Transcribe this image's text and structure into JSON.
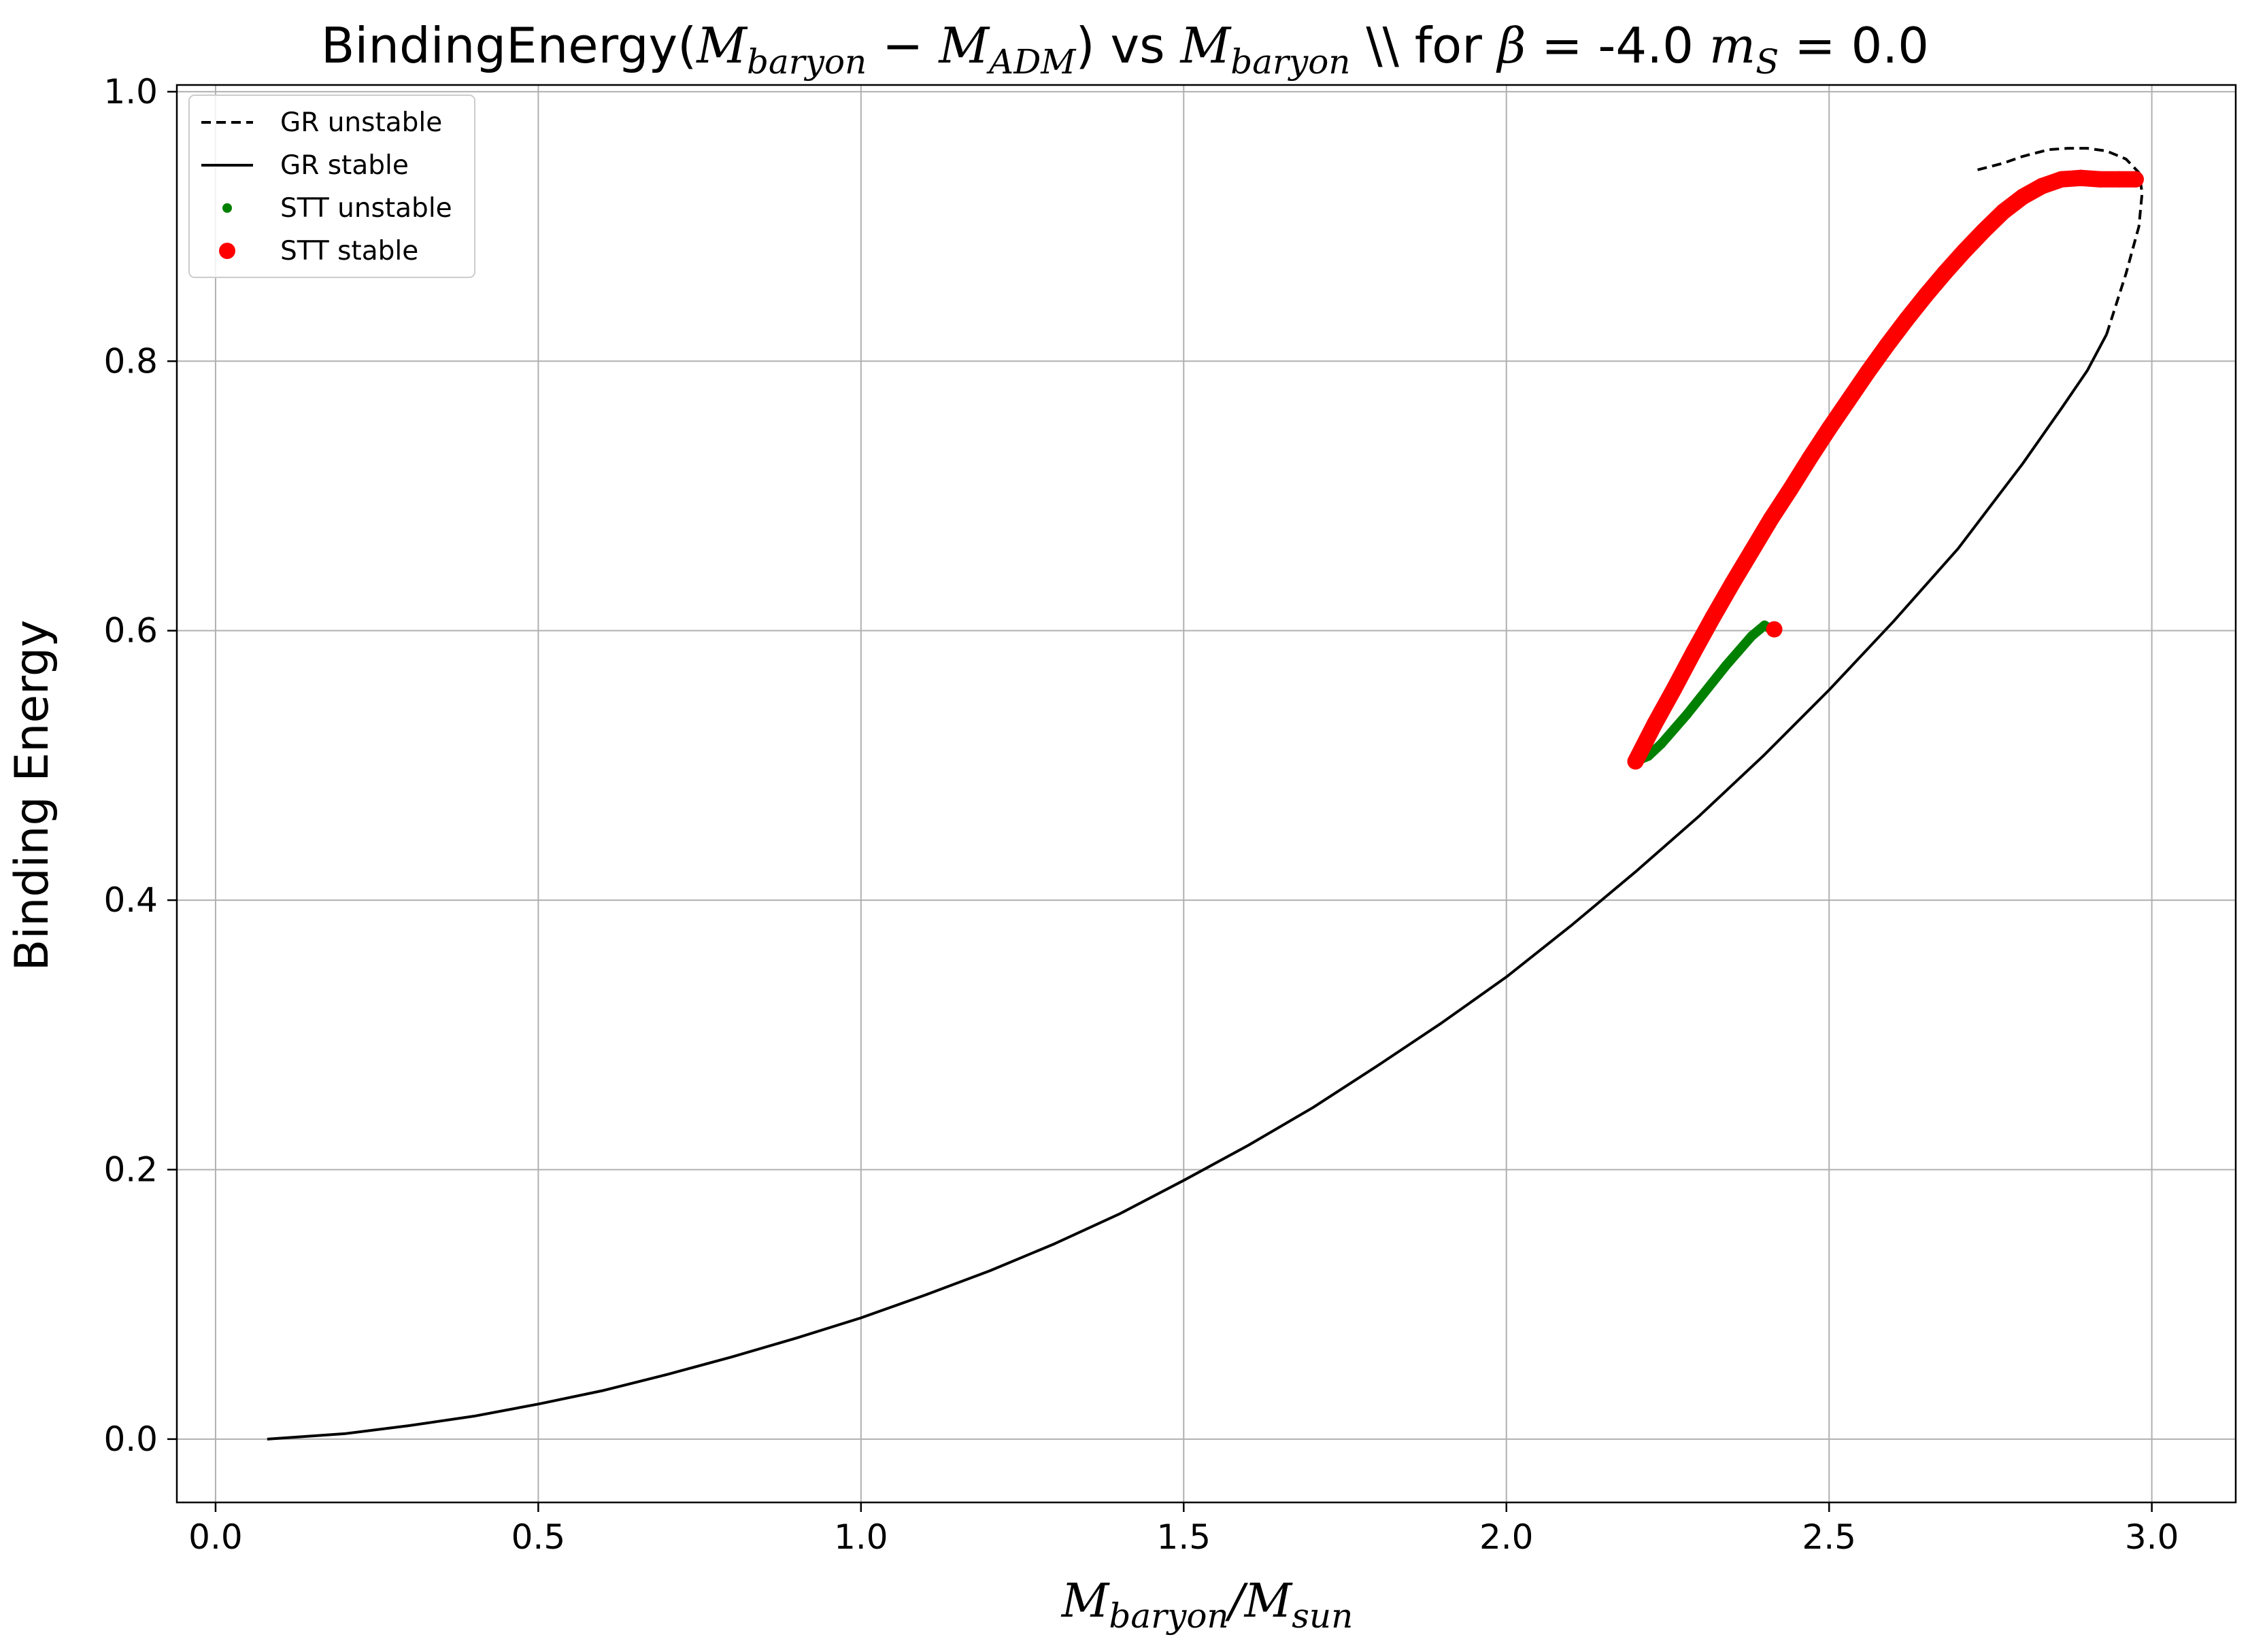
{
  "chart_data": {
    "type": "line",
    "title": {
      "prefix": "BindingEnergy(",
      "m1": "M",
      "m1_sub": "baryon",
      "minus": " − ",
      "m2": "M",
      "m2_sub": "ADM",
      "middle": ") vs ",
      "m3": "M",
      "m3_sub": "baryon",
      "for_text": " \\\\ for ",
      "beta": "β",
      "beta_val": " = -4.0 ",
      "ms": "m",
      "ms_sub": "S",
      "ms_val": " = 0.0"
    },
    "xlabel": {
      "m": "M",
      "sub1": "baryon",
      "slash": "/",
      "m2": "M",
      "sub2": "sun"
    },
    "ylabel": "Binding Energy",
    "xlim": [
      -0.06,
      3.13
    ],
    "ylim": [
      -0.047,
      1.005
    ],
    "xticks": [
      0.0,
      0.5,
      1.0,
      1.5,
      2.0,
      2.5,
      3.0
    ],
    "xtick_labels": [
      "0.0",
      "0.5",
      "1.0",
      "1.5",
      "2.0",
      "2.5",
      "3.0"
    ],
    "yticks": [
      0.0,
      0.2,
      0.4,
      0.6,
      0.8,
      1.0
    ],
    "ytick_labels": [
      "0.0",
      "0.2",
      "0.4",
      "0.6",
      "0.8",
      "1.0"
    ],
    "grid": true,
    "legend_position": "upper-left",
    "series": [
      {
        "name": "GR unstable",
        "style": "dashed",
        "color": "#000000",
        "x": [
          2.93,
          2.96,
          2.98,
          2.985,
          2.98,
          2.96,
          2.93,
          2.9,
          2.87,
          2.84,
          2.8,
          2.77,
          2.73
        ],
        "y": [
          0.82,
          0.865,
          0.9,
          0.925,
          0.94,
          0.95,
          0.956,
          0.958,
          0.958,
          0.957,
          0.952,
          0.947,
          0.942
        ]
      },
      {
        "name": "GR stable",
        "style": "solid",
        "color": "#000000",
        "x": [
          0.08,
          0.2,
          0.3,
          0.4,
          0.5,
          0.6,
          0.7,
          0.8,
          0.9,
          1.0,
          1.1,
          1.2,
          1.3,
          1.4,
          1.5,
          1.6,
          1.7,
          1.8,
          1.9,
          2.0,
          2.1,
          2.2,
          2.3,
          2.4,
          2.5,
          2.6,
          2.7,
          2.8,
          2.86,
          2.9,
          2.93
        ],
        "y": [
          0.0,
          0.004,
          0.01,
          0.017,
          0.026,
          0.036,
          0.048,
          0.061,
          0.075,
          0.09,
          0.107,
          0.125,
          0.145,
          0.167,
          0.192,
          0.218,
          0.246,
          0.277,
          0.309,
          0.343,
          0.381,
          0.421,
          0.463,
          0.508,
          0.556,
          0.607,
          0.661,
          0.724,
          0.765,
          0.793,
          0.82
        ]
      },
      {
        "name": "STT unstable",
        "style": "markers-small",
        "color": "#008000",
        "x": [
          2.2,
          2.22,
          2.24,
          2.26,
          2.28,
          2.3,
          2.32,
          2.34,
          2.36,
          2.38,
          2.4,
          2.41
        ],
        "y": [
          0.503,
          0.507,
          0.516,
          0.527,
          0.538,
          0.55,
          0.562,
          0.574,
          0.585,
          0.596,
          0.604,
          0.601
        ]
      },
      {
        "name": "STT stable",
        "style": "markers",
        "color": "#ff0000",
        "x": [
          2.2,
          2.23,
          2.26,
          2.29,
          2.32,
          2.35,
          2.38,
          2.41,
          2.44,
          2.47,
          2.5,
          2.53,
          2.56,
          2.59,
          2.62,
          2.65,
          2.68,
          2.71,
          2.74,
          2.77,
          2.8,
          2.83,
          2.86,
          2.89,
          2.92,
          2.95,
          2.975
        ],
        "y": [
          0.503,
          0.531,
          0.557,
          0.584,
          0.61,
          0.635,
          0.659,
          0.683,
          0.705,
          0.728,
          0.75,
          0.771,
          0.792,
          0.812,
          0.831,
          0.849,
          0.866,
          0.882,
          0.897,
          0.911,
          0.922,
          0.93,
          0.935,
          0.936,
          0.935,
          0.935,
          0.935
        ]
      }
    ],
    "extra_points": [
      {
        "series": "STT stable",
        "x": 2.415,
        "y": 0.601
      }
    ]
  }
}
